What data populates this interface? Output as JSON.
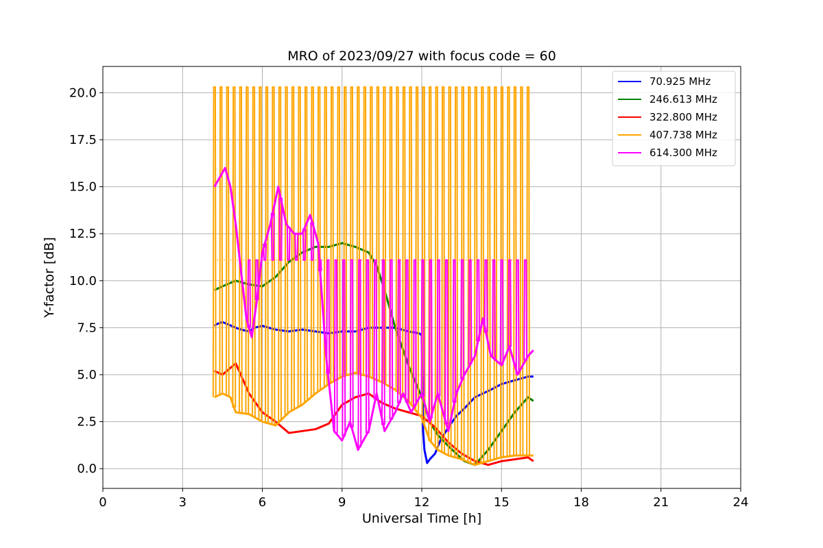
{
  "chart_data": {
    "type": "line",
    "title": "MRO of 2023/09/27 with focus code = 60",
    "xlabel": "Universal Time [h]",
    "ylabel": "Y-factor [dB]",
    "xlim": [
      0,
      24
    ],
    "ylim": [
      -1.05,
      21.4
    ],
    "xticks": [
      0,
      3,
      6,
      9,
      12,
      15,
      18,
      21,
      24
    ],
    "yticks": [
      0.0,
      2.5,
      5.0,
      7.5,
      10.0,
      12.5,
      15.0,
      17.5,
      20.0
    ],
    "xtick_labels": [
      "0",
      "3",
      "6",
      "9",
      "12",
      "15",
      "18",
      "21",
      "24"
    ],
    "ytick_labels": [
      "0.0",
      "2.5",
      "5.0",
      "7.5",
      "10.0",
      "12.5",
      "15.0",
      "17.5",
      "20.0"
    ],
    "grid": true,
    "legend_position": "top-right",
    "series": [
      {
        "name": " 70.925 MHz",
        "color": "#0000ff",
        "x": [
          4.2,
          4.3,
          4.5,
          5.0,
          5.2,
          5.5,
          5.7,
          6.0,
          6.5,
          7.0,
          7.5,
          8.0,
          8.5,
          9.0,
          9.5,
          10.0,
          10.5,
          11.0,
          11.5,
          11.9,
          12.0,
          12.05,
          12.1,
          12.2,
          12.3,
          12.5,
          12.7,
          13.0,
          13.3,
          13.6,
          14.0,
          14.3,
          14.6,
          15.0,
          15.5,
          16.0,
          16.2
        ],
        "y": [
          7.6,
          7.7,
          7.8,
          7.5,
          7.4,
          7.3,
          7.5,
          7.6,
          7.4,
          7.3,
          7.4,
          7.3,
          7.2,
          7.3,
          7.3,
          7.5,
          7.5,
          7.5,
          7.3,
          7.2,
          7.1,
          2.0,
          1.0,
          0.3,
          0.5,
          0.8,
          1.5,
          2.2,
          2.8,
          3.2,
          3.8,
          4.0,
          4.2,
          4.5,
          4.7,
          4.9,
          4.9
        ]
      },
      {
        "name": "246.613 MHz",
        "color": "#008000",
        "x": [
          4.2,
          4.5,
          5.0,
          5.5,
          6.0,
          6.5,
          7.0,
          7.5,
          8.0,
          8.5,
          9.0,
          9.5,
          10.0,
          10.3,
          10.6,
          11.0,
          11.5,
          12.0,
          12.3,
          12.6,
          13.0,
          13.3,
          13.6,
          14.0,
          14.5,
          15.0,
          15.5,
          16.0,
          16.2
        ],
        "y": [
          9.5,
          9.7,
          10.0,
          9.8,
          9.7,
          10.2,
          11.0,
          11.5,
          11.8,
          11.8,
          12.0,
          11.8,
          11.5,
          10.8,
          9.5,
          7.5,
          5.5,
          3.8,
          2.5,
          1.8,
          1.2,
          0.8,
          0.4,
          0.2,
          1.0,
          2.0,
          3.0,
          3.8,
          3.6
        ]
      },
      {
        "name": "322.800 MHz",
        "color": "#ff0000",
        "x": [
          4.2,
          4.5,
          5.0,
          5.5,
          6.0,
          6.5,
          7.0,
          7.5,
          8.0,
          8.5,
          9.0,
          9.5,
          10.0,
          10.5,
          11.0,
          11.5,
          12.0,
          12.5,
          13.0,
          13.5,
          14.0,
          14.5,
          15.0,
          15.5,
          16.0,
          16.2
        ],
        "y": [
          5.2,
          5.0,
          5.6,
          4.0,
          3.0,
          2.5,
          1.9,
          2.0,
          2.1,
          2.4,
          3.4,
          3.8,
          4.0,
          3.5,
          3.2,
          3.0,
          2.8,
          2.2,
          1.4,
          0.8,
          0.4,
          0.2,
          0.4,
          0.5,
          0.6,
          0.4
        ]
      },
      {
        "name": "407.738 MHz",
        "color": "#ffa500",
        "x": [
          4.2,
          4.5,
          4.8,
          5.0,
          5.5,
          6.0,
          6.5,
          7.0,
          7.5,
          8.0,
          8.5,
          9.0,
          9.5,
          10.0,
          10.5,
          11.0,
          11.5,
          12.0,
          12.3,
          12.6,
          13.0,
          13.5,
          14.0,
          14.5,
          15.0,
          15.5,
          16.0,
          16.2
        ],
        "y": [
          3.8,
          4.0,
          3.8,
          3.0,
          2.9,
          2.5,
          2.3,
          3.0,
          3.4,
          4.0,
          4.5,
          4.9,
          5.1,
          4.9,
          4.6,
          4.2,
          3.6,
          2.7,
          1.5,
          1.0,
          0.7,
          0.5,
          0.2,
          0.4,
          0.6,
          0.7,
          0.7,
          0.7
        ],
        "spikes": {
          "start": 4.2,
          "end": 16.0,
          "count": 49,
          "peak": 20.3,
          "alt_peak": 11.1
        }
      },
      {
        "name": "614.300 MHz",
        "color": "#ff00ff",
        "x": [
          4.2,
          4.4,
          4.6,
          4.8,
          5.0,
          5.2,
          5.4,
          5.6,
          5.8,
          6.0,
          6.3,
          6.6,
          6.9,
          7.2,
          7.5,
          7.8,
          8.1,
          8.4,
          8.7,
          9.0,
          9.3,
          9.6,
          10.0,
          10.3,
          10.6,
          11.0,
          11.3,
          11.6,
          12.0,
          12.3,
          12.6,
          13.0,
          13.3,
          13.6,
          14.0,
          14.3,
          14.6,
          15.0,
          15.3,
          15.6,
          16.0,
          16.2
        ],
        "y": [
          15.0,
          15.5,
          16.0,
          15.0,
          13.0,
          10.5,
          8.0,
          7.0,
          9.0,
          11.5,
          13.0,
          15.0,
          13.0,
          12.5,
          12.5,
          13.5,
          12.0,
          6.0,
          2.0,
          1.5,
          2.5,
          1.0,
          2.0,
          4.0,
          2.0,
          3.0,
          4.0,
          3.0,
          4.0,
          2.5,
          4.0,
          2.0,
          4.0,
          5.0,
          6.0,
          8.0,
          6.0,
          5.5,
          6.5,
          5.0,
          6.0,
          6.3
        ],
        "spikes": {
          "start": 5.5,
          "end": 15.9,
          "count": 36,
          "peak": 11.1
        }
      }
    ]
  }
}
